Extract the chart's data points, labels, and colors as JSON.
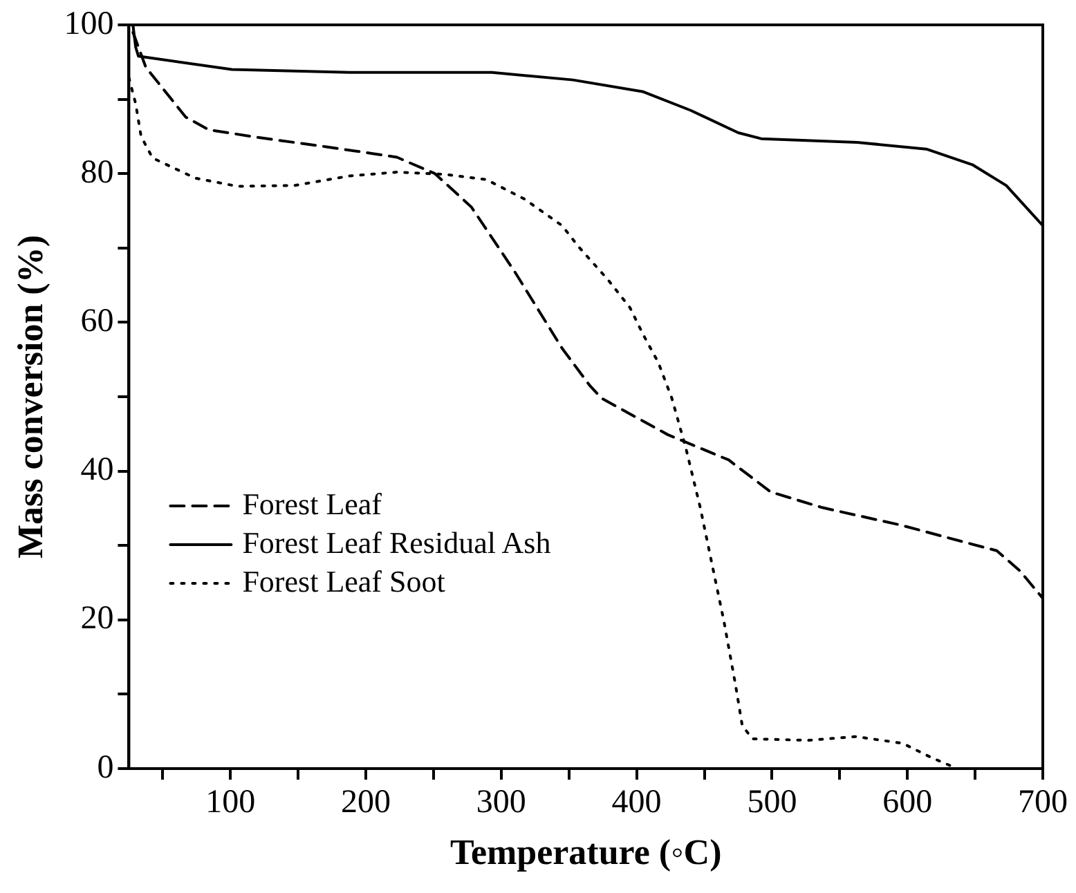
{
  "chart_data": {
    "type": "line",
    "xlabel": "Temperature (◦C)",
    "ylabel": "Mass conversion (%)",
    "xlim": [
      25,
      700
    ],
    "ylim": [
      0,
      100
    ],
    "xticks": [
      {
        "value": 50,
        "label": null
      },
      100,
      {
        "value": 150,
        "label": null
      },
      200,
      {
        "value": 250,
        "label": null
      },
      300,
      {
        "value": 350,
        "label": null
      },
      400,
      {
        "value": 450,
        "label": null
      },
      500,
      {
        "value": 550,
        "label": null
      },
      600,
      {
        "value": 650,
        "label": null
      },
      700
    ],
    "yticks": [
      0,
      {
        "value": 10,
        "label": null
      },
      20,
      {
        "value": 30,
        "label": null
      },
      40,
      {
        "value": 50,
        "label": null
      },
      60,
      {
        "value": 70,
        "label": null
      },
      80,
      {
        "value": 90,
        "label": null
      },
      100
    ],
    "grid": false,
    "legend": "bottom left",
    "marker": "none",
    "series": [
      {
        "name": "Forest Leaf",
        "color": "#000000",
        "line_style": "dashed",
        "x": [
          28,
          37.5,
          67,
          84,
          119,
          171,
          205,
          223,
          251,
          278,
          310,
          345,
          365,
          374,
          405,
          423,
          468,
          499,
          537,
          596,
          641,
          666,
          683,
          700
        ],
        "values": [
          99,
          94.3,
          87.6,
          85.9,
          84.9,
          83.6,
          82.7,
          82.2,
          80,
          75.5,
          66.8,
          56.5,
          51.6,
          49.8,
          46.7,
          44.9,
          41.5,
          37.2,
          35.1,
          32.7,
          30.5,
          29.3,
          26.6,
          22.9
        ]
      },
      {
        "name": "Forest Leaf Residual Ash",
        "color": "#000000",
        "line_style": "solid",
        "x": [
          28,
          30,
          32,
          101,
          188,
          293,
          353,
          405,
          440,
          475,
          492,
          563,
          614,
          648,
          673,
          700
        ],
        "values": [
          100,
          97,
          95.8,
          94,
          93.6,
          93.6,
          92.6,
          91,
          88.5,
          85.5,
          84.7,
          84.2,
          83.3,
          81.2,
          78.4,
          73
        ]
      },
      {
        "name": "Forest Leaf Soot",
        "color": "#000000",
        "line_style": "dotted",
        "x": [
          25,
          30,
          34,
          42.5,
          74,
          105,
          147,
          188.5,
          223,
          258,
          289,
          317,
          345,
          357,
          379,
          395,
          405,
          416,
          426,
          436.5,
          447,
          456,
          464.5,
          473,
          478,
          485.5,
          527,
          562,
          596.5,
          617.5,
          633
        ],
        "values": [
          92.9,
          89.4,
          85,
          82.1,
          79.4,
          78.3,
          78.4,
          79.7,
          80.2,
          79.9,
          79.2,
          76.6,
          73,
          70.2,
          65.7,
          62,
          58.3,
          54.6,
          49.8,
          43,
          35.1,
          27.2,
          19.8,
          11.3,
          5.8,
          4,
          3.8,
          4.3,
          3.4,
          1.5,
          0.3
        ]
      }
    ]
  }
}
